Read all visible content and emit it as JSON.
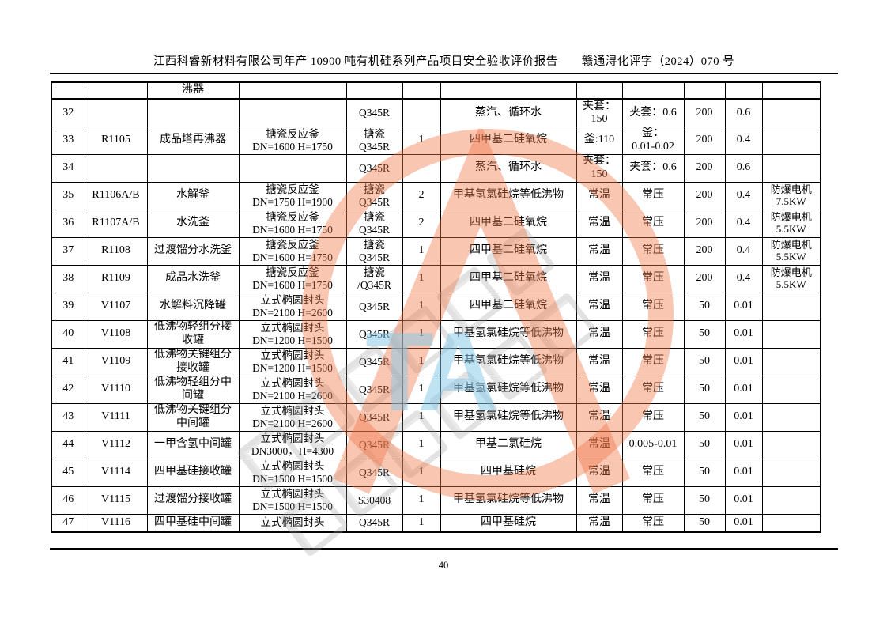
{
  "header": {
    "title": "江西科睿新材料有限公司年产 10900 吨有机硅系列产品项目安全验收评价报告　　赣通浔化评字（2024）070 号"
  },
  "footer": {
    "page_number": "40"
  },
  "watermark": {
    "letters": "TA",
    "ring_color": "#f07648",
    "letters_color": "#82c8e8"
  },
  "table": {
    "columns": [
      {
        "key": "seq"
      },
      {
        "key": "tag"
      },
      {
        "key": "name"
      },
      {
        "key": "spec"
      },
      {
        "key": "material"
      },
      {
        "key": "qty"
      },
      {
        "key": "medium"
      },
      {
        "key": "temp"
      },
      {
        "key": "pressure"
      },
      {
        "key": "design_temp"
      },
      {
        "key": "design_pressure"
      },
      {
        "key": "remark"
      }
    ],
    "rows": [
      {
        "seq": "",
        "tag": "",
        "name": "沸器",
        "spec": "",
        "material": "",
        "qty": "",
        "medium": "",
        "temp": "",
        "pressure": "",
        "design_temp": "",
        "design_pressure": "",
        "remark": ""
      },
      {
        "seq": "32",
        "tag": "",
        "name": "",
        "spec": "",
        "material": "Q345R",
        "qty": "",
        "medium": "蒸汽、循环水",
        "temp": "夹套：\n150",
        "pressure": "夹套：0.6",
        "design_temp": "200",
        "design_pressure": "0.6",
        "remark": ""
      },
      {
        "seq": "33",
        "tag": "R1105",
        "name": "成品塔再沸器",
        "spec": "搪瓷反应釜\nDN=1600 H=1750",
        "material": "搪瓷\nQ345R",
        "qty": "1",
        "medium": "四甲基二硅氧烷",
        "temp": "釜:110",
        "pressure": "釜：\n0.01-0.02",
        "design_temp": "200",
        "design_pressure": "0.4",
        "remark": ""
      },
      {
        "seq": "34",
        "tag": "",
        "name": "",
        "spec": "",
        "material": "Q345R",
        "qty": "",
        "medium": "蒸汽、循环水",
        "temp": "夹套：\n150",
        "pressure": "夹套：0.6",
        "design_temp": "200",
        "design_pressure": "0.6",
        "remark": ""
      },
      {
        "seq": "35",
        "tag": "R1106A/B",
        "name": "水解釜",
        "spec": "搪瓷反应釜\nDN=1750 H=1900",
        "material": "搪瓷\nQ345R",
        "qty": "2",
        "medium": "甲基氢氯硅烷等低沸物",
        "temp": "常温",
        "pressure": "常压",
        "design_temp": "200",
        "design_pressure": "0.4",
        "remark": "防爆电机\n7.5KW"
      },
      {
        "seq": "36",
        "tag": "R1107A/B",
        "name": "水洗釜",
        "spec": "搪瓷反应釜\nDN=1600 H=1750",
        "material": "搪瓷\nQ345R",
        "qty": "2",
        "medium": "四甲基二硅氧烷",
        "temp": "常温",
        "pressure": "常压",
        "design_temp": "200",
        "design_pressure": "0.4",
        "remark": "防爆电机\n5.5KW"
      },
      {
        "seq": "37",
        "tag": "R1108",
        "name": "过渡馏分水洗釜",
        "spec": "搪瓷反应釜\nDN=1600 H=1750",
        "material": "搪瓷\nQ345R",
        "qty": "1",
        "medium": "四甲基二硅氧烷",
        "temp": "常温",
        "pressure": "常压",
        "design_temp": "200",
        "design_pressure": "0.4",
        "remark": "防爆电机\n5.5KW"
      },
      {
        "seq": "38",
        "tag": "R1109",
        "name": "成品水洗釜",
        "spec": "搪瓷反应釜\nDN=1600 H=1750",
        "material": "搪瓷\n/Q345R",
        "qty": "1",
        "medium": "四甲基二硅氧烷",
        "temp": "常温",
        "pressure": "常压",
        "design_temp": "200",
        "design_pressure": "0.4",
        "remark": "防爆电机\n5.5KW"
      },
      {
        "seq": "39",
        "tag": "V1107",
        "name": "水解料沉降罐",
        "spec": "立式椭圆封头\nDN=2100 H=2600",
        "material": "Q345R",
        "qty": "1",
        "medium": "四甲基二硅氧烷",
        "temp": "常温",
        "pressure": "常压",
        "design_temp": "50",
        "design_pressure": "0.01",
        "remark": ""
      },
      {
        "seq": "40",
        "tag": "V1108",
        "name": "低沸物轻组分接收罐",
        "spec": "立式椭圆封头\nDN=1200 H=1500",
        "material": "Q345R",
        "qty": "1",
        "medium": "甲基氢氯硅烷等低沸物",
        "temp": "常温",
        "pressure": "常压",
        "design_temp": "50",
        "design_pressure": "0.01",
        "remark": ""
      },
      {
        "seq": "41",
        "tag": "V1109",
        "name": "低沸物关键组分接收罐",
        "spec": "立式椭圆封头\nDN=1200 H=1500",
        "material": "Q345R",
        "qty": "1",
        "medium": "甲基氢氯硅烷等低沸物",
        "temp": "常温",
        "pressure": "常压",
        "design_temp": "50",
        "design_pressure": "0.01",
        "remark": ""
      },
      {
        "seq": "42",
        "tag": "V1110",
        "name": "低沸物轻组分中间罐",
        "spec": "立式椭圆封头\nDN=2100 H=2600",
        "material": "Q345R",
        "qty": "1",
        "medium": "甲基氢氯硅烷等低沸物",
        "temp": "常温",
        "pressure": "常压",
        "design_temp": "50",
        "design_pressure": "0.01",
        "remark": ""
      },
      {
        "seq": "43",
        "tag": "V1111",
        "name": "低沸物关键组分中间罐",
        "spec": "立式椭圆封头\nDN=2100 H=2600",
        "material": "Q345R",
        "qty": "1",
        "medium": "甲基氢氯硅烷等低沸物",
        "temp": "常温",
        "pressure": "常压",
        "design_temp": "50",
        "design_pressure": "0.01",
        "remark": ""
      },
      {
        "seq": "44",
        "tag": "V1112",
        "name": "一甲含氢中间罐",
        "spec": "立式椭圆封头\nDN3000，H=4300",
        "material": "Q345R",
        "qty": "1",
        "medium": "甲基二氯硅烷",
        "temp": "常温",
        "pressure": "0.005-0.01",
        "design_temp": "50",
        "design_pressure": "0.01",
        "remark": ""
      },
      {
        "seq": "45",
        "tag": "V1114",
        "name": "四甲基硅接收罐",
        "spec": "立式椭圆封头\nDN=1500 H=1500",
        "material": "Q345R",
        "qty": "1",
        "medium": "四甲基硅烷",
        "temp": "常温",
        "pressure": "常压",
        "design_temp": "50",
        "design_pressure": "0.01",
        "remark": ""
      },
      {
        "seq": "46",
        "tag": "V1115",
        "name": "过渡馏分接收罐",
        "spec": "立式椭圆封头\nDN=1500 H=1500",
        "material": "S30408",
        "qty": "1",
        "medium": "甲基氢氯硅烷等低沸物",
        "temp": "常温",
        "pressure": "常压",
        "design_temp": "50",
        "design_pressure": "0.01",
        "remark": ""
      },
      {
        "seq": "47",
        "tag": "V1116",
        "name": "四甲基硅中间罐",
        "spec": "立式椭圆封头",
        "material": "Q345R",
        "qty": "1",
        "medium": "四甲基硅烷",
        "temp": "常温",
        "pressure": "常压",
        "design_temp": "50",
        "design_pressure": "0.01",
        "remark": ""
      }
    ]
  }
}
